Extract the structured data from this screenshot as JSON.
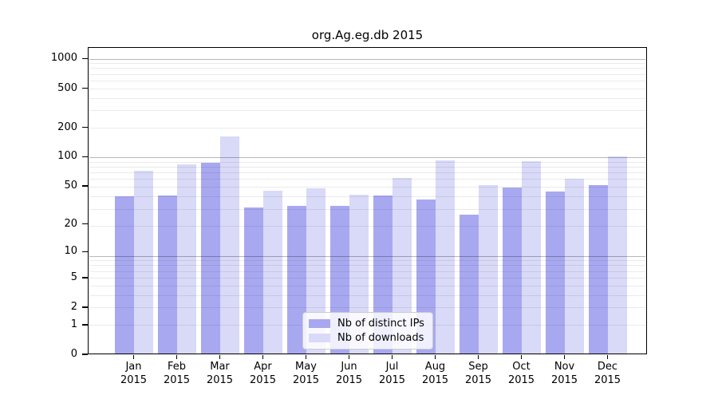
{
  "chart_data": {
    "type": "bar",
    "title": "org.Ag.eg.db 2015",
    "x_months": [
      "Jan",
      "Feb",
      "Mar",
      "Apr",
      "May",
      "Jun",
      "Jul",
      "Aug",
      "Sep",
      "Oct",
      "Nov",
      "Dec"
    ],
    "x_year": "2015",
    "series": [
      {
        "name": "Nb of distinct IPs",
        "color": "#a8a8f0",
        "values": [
          39,
          40,
          87,
          30,
          31,
          31,
          40,
          36,
          25,
          48,
          44,
          51
        ]
      },
      {
        "name": "Nb of downloads",
        "color": "#d9d9f8",
        "values": [
          72,
          83,
          160,
          45,
          47,
          41,
          61,
          92,
          51,
          90,
          59,
          100
        ]
      }
    ],
    "y_ticks": [
      1000,
      500,
      200,
      100,
      50,
      20,
      10,
      5,
      2,
      1,
      0
    ],
    "y_scale": "log(1+x)",
    "ylim": [
      0,
      1300
    ],
    "grid": true,
    "legend_position": "lower-center",
    "colors": {
      "background": "#ffffff",
      "frame": "#000000",
      "grid_major": "rgba(0,0,0,0.28)",
      "grid_minor": "rgba(0,0,0,0.08)"
    }
  }
}
